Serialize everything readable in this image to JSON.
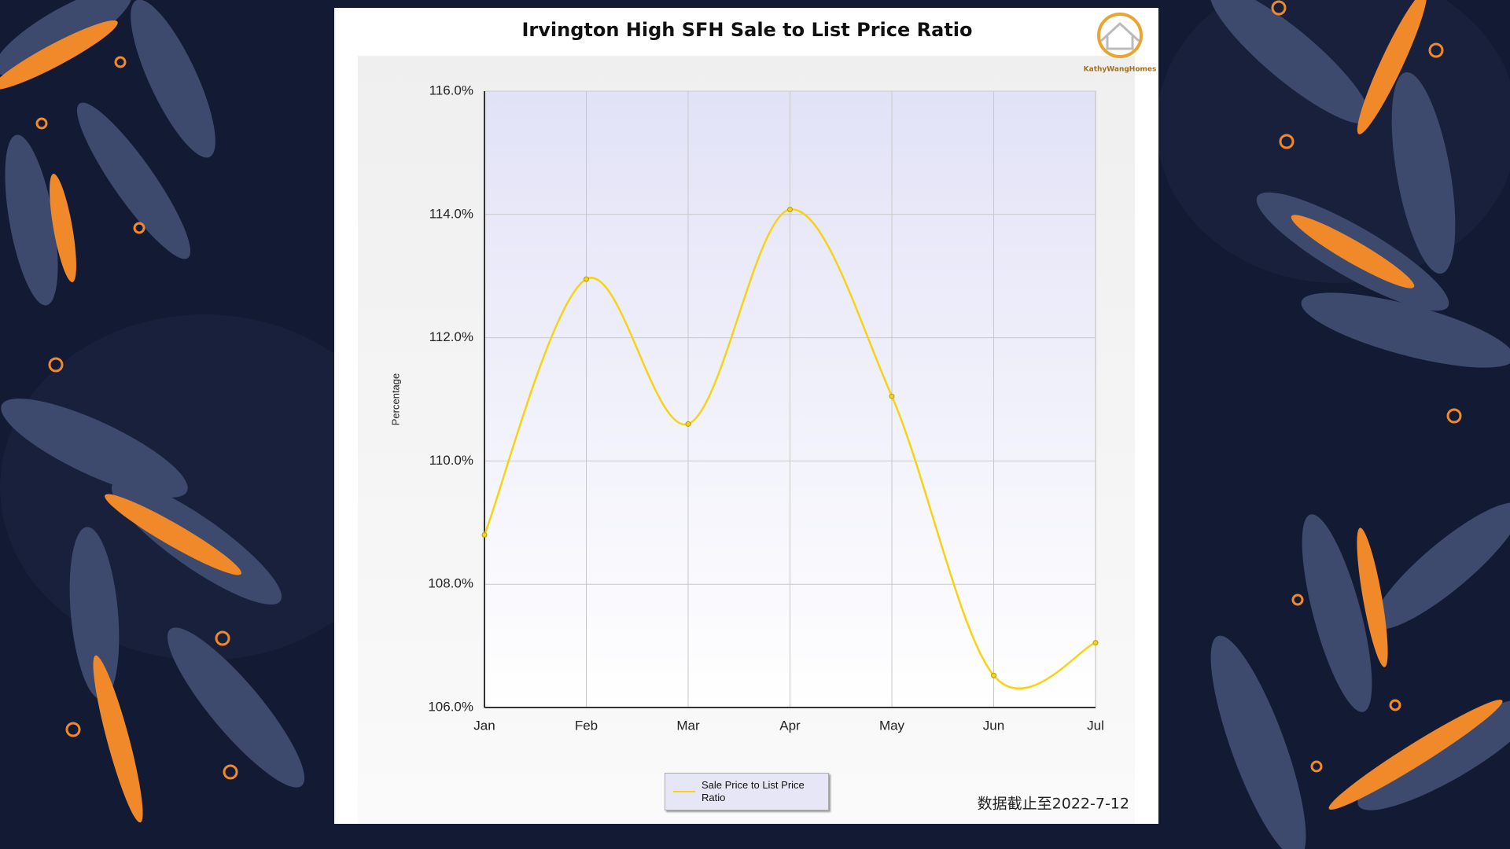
{
  "brand": "KathyWangHomes",
  "chart_data": {
    "type": "line",
    "title": "Irvington High SFH Sale to List Price Ratio",
    "y_label": "Percentage",
    "annotation": "数据截止至2022-7-12",
    "categories": [
      "Jan",
      "Feb",
      "Mar",
      "Apr",
      "May",
      "Jun",
      "Jul"
    ],
    "series": [
      {
        "name": "Sale Price to List Price Ratio",
        "color": "#f5d316",
        "values": [
          108.8,
          112.95,
          110.6,
          114.08,
          111.05,
          106.52,
          107.05
        ]
      }
    ],
    "ylim": [
      106,
      116
    ],
    "yticks": [
      {
        "value": 106,
        "label": "106.0%"
      },
      {
        "value": 108,
        "label": "108.0%"
      },
      {
        "value": 110,
        "label": "110.0%"
      },
      {
        "value": 112,
        "label": "112.0%"
      },
      {
        "value": 114,
        "label": "114.0%"
      },
      {
        "value": 116,
        "label": "116.0%"
      }
    ],
    "grid": true,
    "smooth": true
  }
}
